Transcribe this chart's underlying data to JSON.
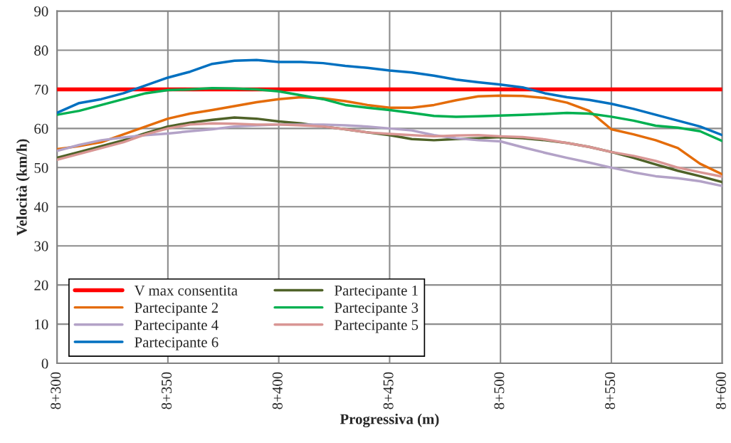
{
  "chart_data": {
    "type": "line",
    "xlabel": "Progressiva (m)",
    "ylabel": "Velocità (km/h)",
    "categories": [
      "8+300",
      null,
      null,
      null,
      null,
      "8+350",
      null,
      null,
      null,
      null,
      "8+400",
      null,
      null,
      null,
      null,
      "8+450",
      null,
      null,
      null,
      null,
      "8+500",
      null,
      null,
      null,
      null,
      "8+550",
      null,
      null,
      null,
      null,
      "8+600"
    ],
    "ylim": [
      0,
      90
    ],
    "yticks": [
      0,
      10,
      20,
      30,
      40,
      50,
      60,
      70,
      80,
      90
    ],
    "grid": true,
    "legend": "bottom left",
    "marker": "none",
    "line_style": "solid",
    "series": [
      {
        "name": "V max consentita",
        "color": "#ff0000",
        "values": [
          70,
          70,
          70,
          70,
          70,
          70,
          70,
          70,
          70,
          70,
          70,
          70,
          70,
          70,
          70,
          70,
          70,
          70,
          70,
          70,
          70,
          70,
          70,
          70,
          70,
          70,
          70,
          70,
          70,
          70,
          70
        ]
      },
      {
        "name": "Partecipante 1",
        "color": "#4f6228",
        "values": [
          52.5,
          54,
          55.5,
          57,
          58.8,
          60.5,
          61.5,
          62.2,
          62.8,
          62.5,
          61.8,
          61.3,
          60.5,
          59.8,
          59,
          58.3,
          57.3,
          57,
          57.3,
          57.5,
          57.8,
          57.5,
          57,
          56.3,
          55.3,
          54,
          52.5,
          50.8,
          49.2,
          47.8,
          46.3
        ]
      },
      {
        "name": "Partecipante 2",
        "color": "#e46c0a",
        "values": [
          54.7,
          55.5,
          56.5,
          58.5,
          60.5,
          62.5,
          63.8,
          64.7,
          65.7,
          66.7,
          67.5,
          68,
          67.7,
          67,
          66,
          65.3,
          65.3,
          66,
          67.2,
          68.2,
          68.4,
          68.3,
          67.8,
          66.6,
          64.5,
          59.8,
          58.5,
          57,
          55,
          51,
          48.3
        ]
      },
      {
        "name": "Partecipante 3",
        "color": "#00b050",
        "values": [
          63.5,
          64.5,
          66,
          67.5,
          69,
          69.8,
          70,
          70.3,
          70.2,
          70,
          69.5,
          68.5,
          67.5,
          66,
          65.3,
          64.7,
          64,
          63.2,
          63,
          63.1,
          63.3,
          63.5,
          63.7,
          64,
          63.8,
          63,
          62,
          60.7,
          60.2,
          59.3,
          56.8
        ]
      },
      {
        "name": "Partecipante 4",
        "color": "#b3a2c7",
        "values": [
          54.3,
          55.8,
          57,
          57.7,
          58.3,
          58.7,
          59.3,
          59.8,
          60.5,
          60.8,
          61,
          61,
          61,
          60.8,
          60.5,
          60,
          59.5,
          58.3,
          57.5,
          57,
          56.7,
          55.2,
          53.8,
          52.5,
          51.3,
          50,
          48.8,
          47.8,
          47.3,
          46.5,
          45.3
        ]
      },
      {
        "name": "Partecipante 5",
        "color": "#d99694",
        "values": [
          52,
          53.5,
          55,
          56.5,
          58.5,
          60,
          61,
          61.3,
          61.2,
          61,
          61,
          60.8,
          60.5,
          59.8,
          59,
          58.6,
          58.3,
          58,
          58.2,
          58.3,
          58,
          57.8,
          57.2,
          56.3,
          55.3,
          54,
          53,
          51.7,
          50,
          48.8,
          47.7
        ]
      },
      {
        "name": "Partecipante 6",
        "color": "#0070c0",
        "values": [
          64,
          66.5,
          67.5,
          69,
          71,
          73,
          74.5,
          76.5,
          77.3,
          77.5,
          77,
          77,
          76.7,
          76,
          75.5,
          74.8,
          74.3,
          73.5,
          72.5,
          71.8,
          71.2,
          70.5,
          69,
          68,
          67.3,
          66.3,
          65,
          63.5,
          62,
          60.5,
          58.3
        ]
      }
    ]
  }
}
